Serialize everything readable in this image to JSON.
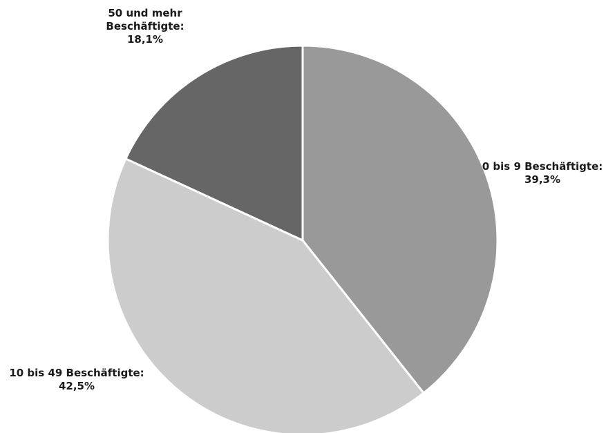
{
  "chart_data": {
    "type": "pie",
    "title": "",
    "start_angle_deg": 0,
    "direction": "clockwise",
    "slices": [
      {
        "label_lines": [
          "0 bis 9 Beschäftigte:"
        ],
        "value_text": "39,3%",
        "value": 39.3,
        "color": "#999999"
      },
      {
        "label_lines": [
          "10 bis 49 Beschäftigte:"
        ],
        "value_text": "42,5%",
        "value": 42.5,
        "color": "#cccccc"
      },
      {
        "label_lines": [
          "50 und mehr",
          "Beschäftigte:"
        ],
        "value_text": "18,1%",
        "value": 18.1,
        "color": "#666666"
      }
    ]
  }
}
